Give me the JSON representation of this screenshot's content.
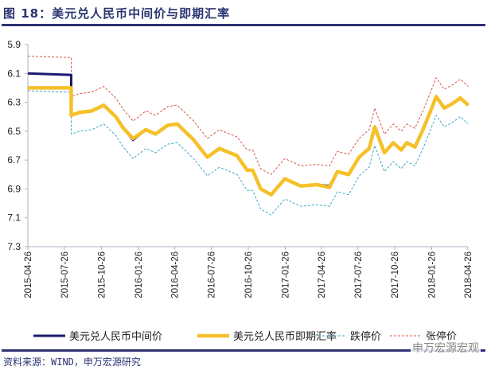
{
  "title": "图 18：美元兑人民币中间价与即期汇率",
  "source": "资料来源：WIND，申万宏源研究",
  "watermark": "申万宏源宏观",
  "chart_data": {
    "type": "line",
    "y_inverted": true,
    "ylim": [
      5.9,
      7.3
    ],
    "yticks": [
      "5.9",
      "6.1",
      "6.3",
      "6.5",
      "6.7",
      "6.9",
      "7.1",
      "7.3"
    ],
    "xticks": [
      "2015-04-26",
      "2015-07-26",
      "2015-10-26",
      "2016-01-26",
      "2016-04-26",
      "2016-07-26",
      "2016-10-26",
      "2017-01-26",
      "2017-04-26",
      "2017-07-26",
      "2017-10-26",
      "2018-01-26",
      "2018-04-26"
    ],
    "xlim": [
      "2015-04-26",
      "2018-04-26"
    ],
    "grid": false,
    "legend_placement": "bottom",
    "x": [
      "2015-04-26",
      "2015-08-10",
      "2015-08-12",
      "2015-09-02",
      "2015-10-02",
      "2015-11-01",
      "2015-12-01",
      "2015-12-20",
      "2016-01-13",
      "2016-02-14",
      "2016-03-09",
      "2016-04-08",
      "2016-05-02",
      "2016-06-12",
      "2016-07-16",
      "2016-08-15",
      "2016-09-28",
      "2016-10-23",
      "2016-11-06",
      "2016-11-26",
      "2016-12-22",
      "2017-01-25",
      "2017-03-06",
      "2017-04-14",
      "2017-05-16",
      "2017-06-05",
      "2017-07-03",
      "2017-07-29",
      "2017-08-23",
      "2017-09-06",
      "2017-09-30",
      "2017-10-22",
      "2017-11-11",
      "2017-11-25",
      "2017-12-15",
      "2018-01-04",
      "2018-01-23",
      "2018-02-06",
      "2018-02-26",
      "2018-03-18",
      "2018-04-07",
      "2018-04-27"
    ],
    "series": [
      {
        "name": "美元兑人民币中间价",
        "color": "#1a1a6e",
        "style": "solid",
        "values": [
          6.1,
          6.11,
          6.39,
          6.37,
          6.36,
          6.32,
          6.4,
          6.48,
          6.56,
          6.49,
          6.52,
          6.46,
          6.45,
          6.56,
          6.68,
          6.62,
          6.67,
          6.77,
          6.77,
          6.9,
          6.94,
          6.83,
          6.88,
          6.87,
          6.88,
          6.78,
          6.8,
          6.68,
          6.62,
          6.47,
          6.65,
          6.58,
          6.63,
          6.58,
          6.61,
          6.49,
          6.36,
          6.26,
          6.34,
          6.31,
          6.27,
          6.32
        ]
      },
      {
        "name": "美元兑人民币即期汇率",
        "color": "#f5c02a",
        "style": "solid",
        "values": [
          6.2,
          6.2,
          6.39,
          6.37,
          6.36,
          6.32,
          6.4,
          6.48,
          6.55,
          6.49,
          6.52,
          6.46,
          6.45,
          6.56,
          6.68,
          6.62,
          6.67,
          6.77,
          6.77,
          6.9,
          6.94,
          6.83,
          6.88,
          6.87,
          6.89,
          6.78,
          6.8,
          6.68,
          6.62,
          6.47,
          6.65,
          6.58,
          6.63,
          6.58,
          6.61,
          6.49,
          6.36,
          6.26,
          6.34,
          6.31,
          6.27,
          6.32
        ]
      },
      {
        "name": "跌停价",
        "color": "#3fa7c9",
        "style": "dashed",
        "values": [
          6.22,
          6.23,
          6.52,
          6.5,
          6.49,
          6.45,
          6.53,
          6.61,
          6.69,
          6.62,
          6.65,
          6.59,
          6.58,
          6.69,
          6.81,
          6.75,
          6.8,
          6.91,
          6.91,
          7.04,
          7.08,
          6.97,
          7.02,
          7.01,
          7.02,
          6.92,
          6.94,
          6.81,
          6.75,
          6.6,
          6.78,
          6.71,
          6.76,
          6.71,
          6.74,
          6.62,
          6.49,
          6.39,
          6.47,
          6.44,
          6.4,
          6.45
        ]
      },
      {
        "name": "张停价",
        "color": "#d9574a",
        "style": "dashed",
        "values": [
          5.98,
          5.99,
          6.26,
          6.24,
          6.23,
          6.19,
          6.27,
          6.35,
          6.43,
          6.36,
          6.39,
          6.33,
          6.32,
          6.43,
          6.55,
          6.49,
          6.54,
          6.63,
          6.63,
          6.76,
          6.8,
          6.69,
          6.74,
          6.73,
          6.74,
          6.64,
          6.66,
          6.55,
          6.49,
          6.34,
          6.52,
          6.45,
          6.5,
          6.45,
          6.48,
          6.36,
          6.23,
          6.13,
          6.21,
          6.18,
          6.14,
          6.19
        ]
      }
    ]
  }
}
